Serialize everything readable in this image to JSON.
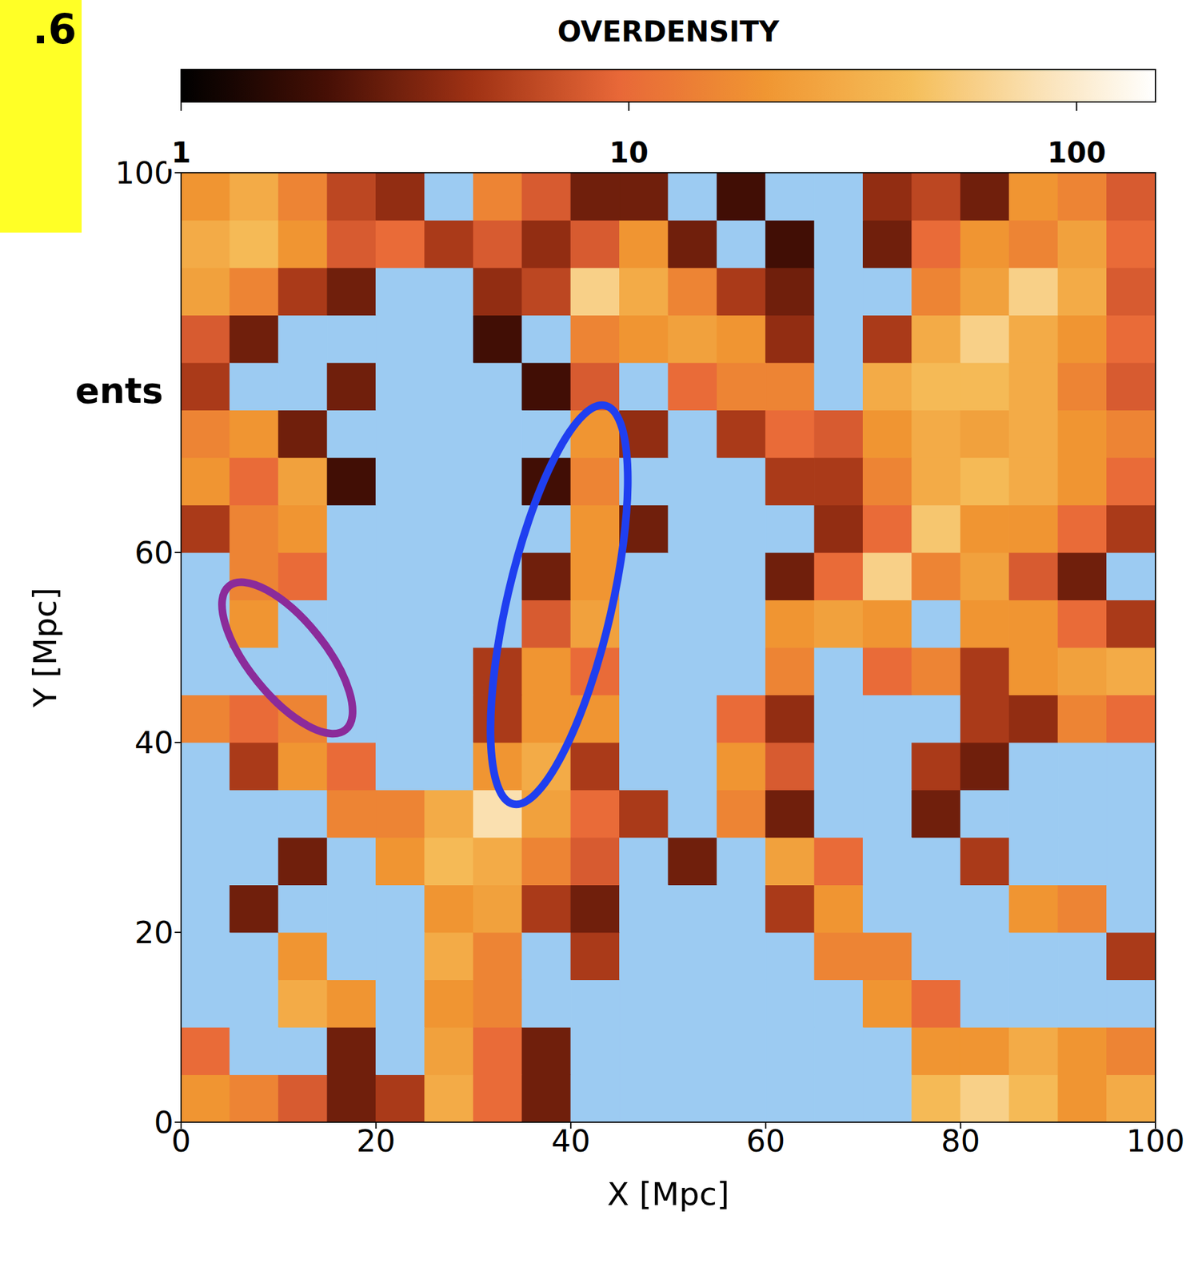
{
  "chart_data": {
    "type": "heatmap",
    "x_label": "X [Mpc]",
    "y_label": "Y [Mpc]",
    "xlim": [
      0,
      100
    ],
    "ylim": [
      0,
      100
    ],
    "xticks": [
      0,
      20,
      40,
      60,
      80,
      100
    ],
    "yticks": [
      0,
      20,
      40,
      60,
      100
    ],
    "x_edges": [
      0,
      5,
      10,
      15,
      20,
      25,
      30,
      35,
      40,
      45,
      50,
      55,
      60,
      65,
      70,
      75,
      80,
      85,
      90,
      95,
      100
    ],
    "y_edges": [
      0,
      5,
      10,
      15,
      20,
      25,
      30,
      35,
      40,
      45,
      50,
      55,
      60,
      65,
      70,
      75,
      80,
      85,
      90,
      95,
      100
    ],
    "cells": [
      [
        20,
        15,
        8,
        3,
        5,
        30,
        10,
        3,
        0.5,
        0.5,
        0.5,
        0.5,
        0.5,
        0.5,
        0.5,
        40,
        60,
        40,
        20,
        30
      ],
      [
        10,
        0.5,
        0.5,
        3,
        0.5,
        25,
        10,
        3,
        0.5,
        0.5,
        0.5,
        0.5,
        0.5,
        0.5,
        0.5,
        20,
        20,
        30,
        20,
        15
      ],
      [
        0.5,
        0.5,
        30,
        20,
        0.5,
        20,
        15,
        0.5,
        0.5,
        0.5,
        0.5,
        0.5,
        0.5,
        0.5,
        20,
        10,
        0.5,
        0.5,
        0.5,
        0.5
      ],
      [
        0.5,
        0.5,
        20,
        0.5,
        0.5,
        30,
        15,
        0.5,
        5,
        0.5,
        0.5,
        0.5,
        0.5,
        15,
        15,
        0.5,
        0.5,
        0.5,
        0.5,
        5
      ],
      [
        0.5,
        3,
        0.5,
        0.5,
        0.5,
        20,
        25,
        5,
        3,
        0.5,
        0.5,
        0.5,
        5,
        20,
        0.5,
        0.5,
        0.5,
        20,
        15,
        0.5
      ],
      [
        0.5,
        0.5,
        3,
        0.5,
        20,
        40,
        30,
        15,
        8,
        0.5,
        3,
        0.5,
        25,
        10,
        0.5,
        0.5,
        5,
        0.5,
        0.5,
        0.5
      ],
      [
        0.5,
        0.5,
        0.5,
        15,
        15,
        30,
        80,
        25,
        10,
        5,
        0.5,
        15,
        3,
        0.5,
        0.5,
        3,
        0.5,
        0.5,
        0.5,
        0.5
      ],
      [
        0.5,
        5,
        20,
        10,
        0.5,
        0.5,
        20,
        30,
        5,
        0.5,
        0.5,
        20,
        8,
        0.5,
        0.5,
        5,
        3,
        0.5,
        0.5,
        0.5
      ],
      [
        15,
        10,
        15,
        0.5,
        0.5,
        0.5,
        5,
        20,
        20,
        0.5,
        0.5,
        10,
        4,
        0.5,
        0.5,
        0.5,
        5,
        4,
        15,
        10
      ],
      [
        0.5,
        0.5,
        0.5,
        0.5,
        0.5,
        0.5,
        5,
        20,
        10,
        0.5,
        0.5,
        0.5,
        15,
        0.5,
        10,
        15,
        5,
        20,
        25,
        30
      ],
      [
        0.5,
        20,
        0.5,
        0.5,
        0.5,
        0.5,
        0.5,
        8,
        25,
        0.5,
        0.5,
        0.5,
        20,
        25,
        20,
        0.5,
        20,
        20,
        10,
        5
      ],
      [
        0.5,
        15,
        10,
        0.5,
        0.5,
        0.5,
        0.5,
        3,
        20,
        0.5,
        0.5,
        0.5,
        3,
        10,
        60,
        15,
        25,
        8,
        3,
        0.5
      ],
      [
        5,
        15,
        20,
        0.5,
        0.5,
        0.5,
        0.5,
        0.5,
        20,
        3,
        0.5,
        0.5,
        0.5,
        4,
        10,
        50,
        20,
        20,
        10,
        5
      ],
      [
        20,
        10,
        25,
        2,
        0.5,
        0.5,
        0.5,
        2,
        15,
        0.5,
        0.5,
        0.5,
        5,
        5,
        15,
        30,
        40,
        30,
        20,
        10
      ],
      [
        15,
        20,
        3,
        0.5,
        0.5,
        0.5,
        0.5,
        0.5,
        20,
        4,
        0.5,
        5,
        10,
        8,
        20,
        30,
        25,
        30,
        20,
        15
      ],
      [
        5,
        0.5,
        0.5,
        3,
        0.5,
        0.5,
        0.5,
        2,
        8,
        0.5,
        10,
        15,
        15,
        0.5,
        30,
        40,
        40,
        30,
        15,
        8
      ],
      [
        8,
        3,
        0.5,
        0.5,
        0.5,
        0.5,
        2,
        0.5,
        15,
        20,
        25,
        20,
        4,
        0.5,
        5,
        30,
        60,
        30,
        20,
        10
      ],
      [
        25,
        15,
        5,
        3,
        0.5,
        0.5,
        4,
        6,
        60,
        30,
        15,
        5,
        3,
        0.5,
        0.5,
        15,
        25,
        60,
        30,
        8
      ],
      [
        30,
        40,
        20,
        8,
        10,
        5,
        8,
        4,
        8,
        20,
        3,
        0.5,
        2,
        0.5,
        3,
        10,
        20,
        15,
        25,
        10
      ],
      [
        20,
        30,
        15,
        6,
        4,
        0.5,
        15,
        8,
        3,
        3,
        0.5,
        2,
        0.5,
        0.5,
        4,
        6,
        3,
        20,
        15,
        8
      ]
    ],
    "color_bar": {
      "title": "OVERDENSITY",
      "range": [
        1,
        150
      ],
      "ticks": [
        1,
        10,
        100
      ],
      "log": true
    },
    "ellipses": [
      {
        "color": "#1f3ff0",
        "x": 38.8,
        "y": 54.5,
        "rx": 21,
        "ry": 5.5,
        "angle": 77
      },
      {
        "color": "#8b2b9a",
        "x": 10.9,
        "y": 48.9,
        "rx": 9.5,
        "ry": 4,
        "angle": -51
      }
    ],
    "annotations": [
      {
        "text": ".6"
      },
      {
        "text": "ents"
      }
    ]
  }
}
